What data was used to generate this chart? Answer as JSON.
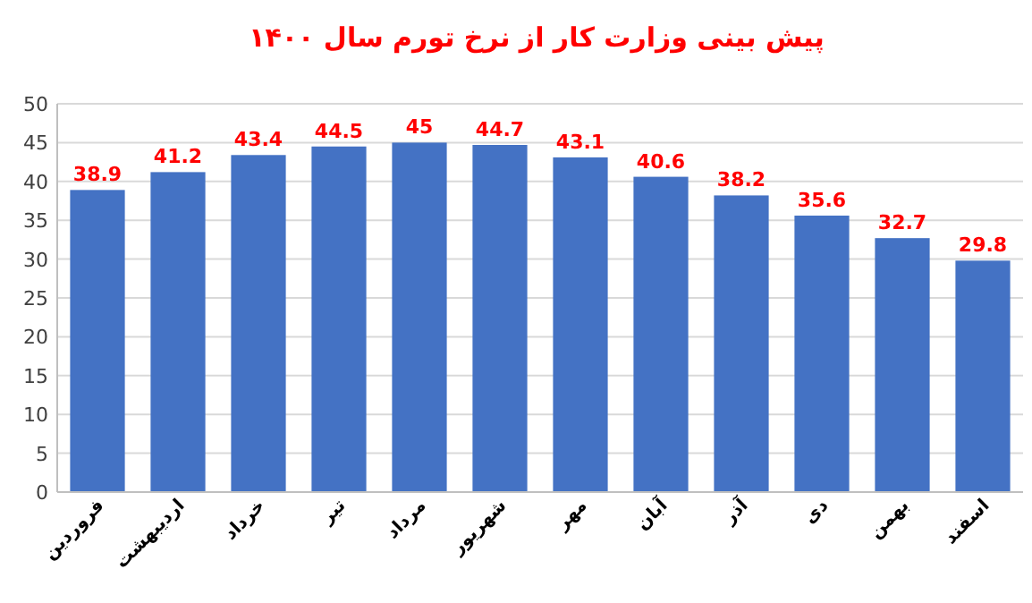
{
  "chart_data": {
    "type": "bar",
    "title": "پیش بینی وزارت کار از نرخ تورم سال ۱۴۰۰",
    "categories": [
      "فروردین",
      "اردیبهشت",
      "خرداد",
      "تیر",
      "مرداد",
      "شهریور",
      "مهر",
      "آبان",
      "آذر",
      "دی",
      "بهمن",
      "اسفند"
    ],
    "values": [
      38.9,
      41.2,
      43.4,
      44.5,
      45,
      44.7,
      43.1,
      40.6,
      38.2,
      35.6,
      32.7,
      29.8
    ],
    "color": "#4472c4",
    "ylim": [
      0,
      50
    ],
    "yticks": [
      0,
      5,
      10,
      15,
      20,
      25,
      30,
      35,
      40,
      45,
      50
    ],
    "grid": "y",
    "data_labels": true
  }
}
